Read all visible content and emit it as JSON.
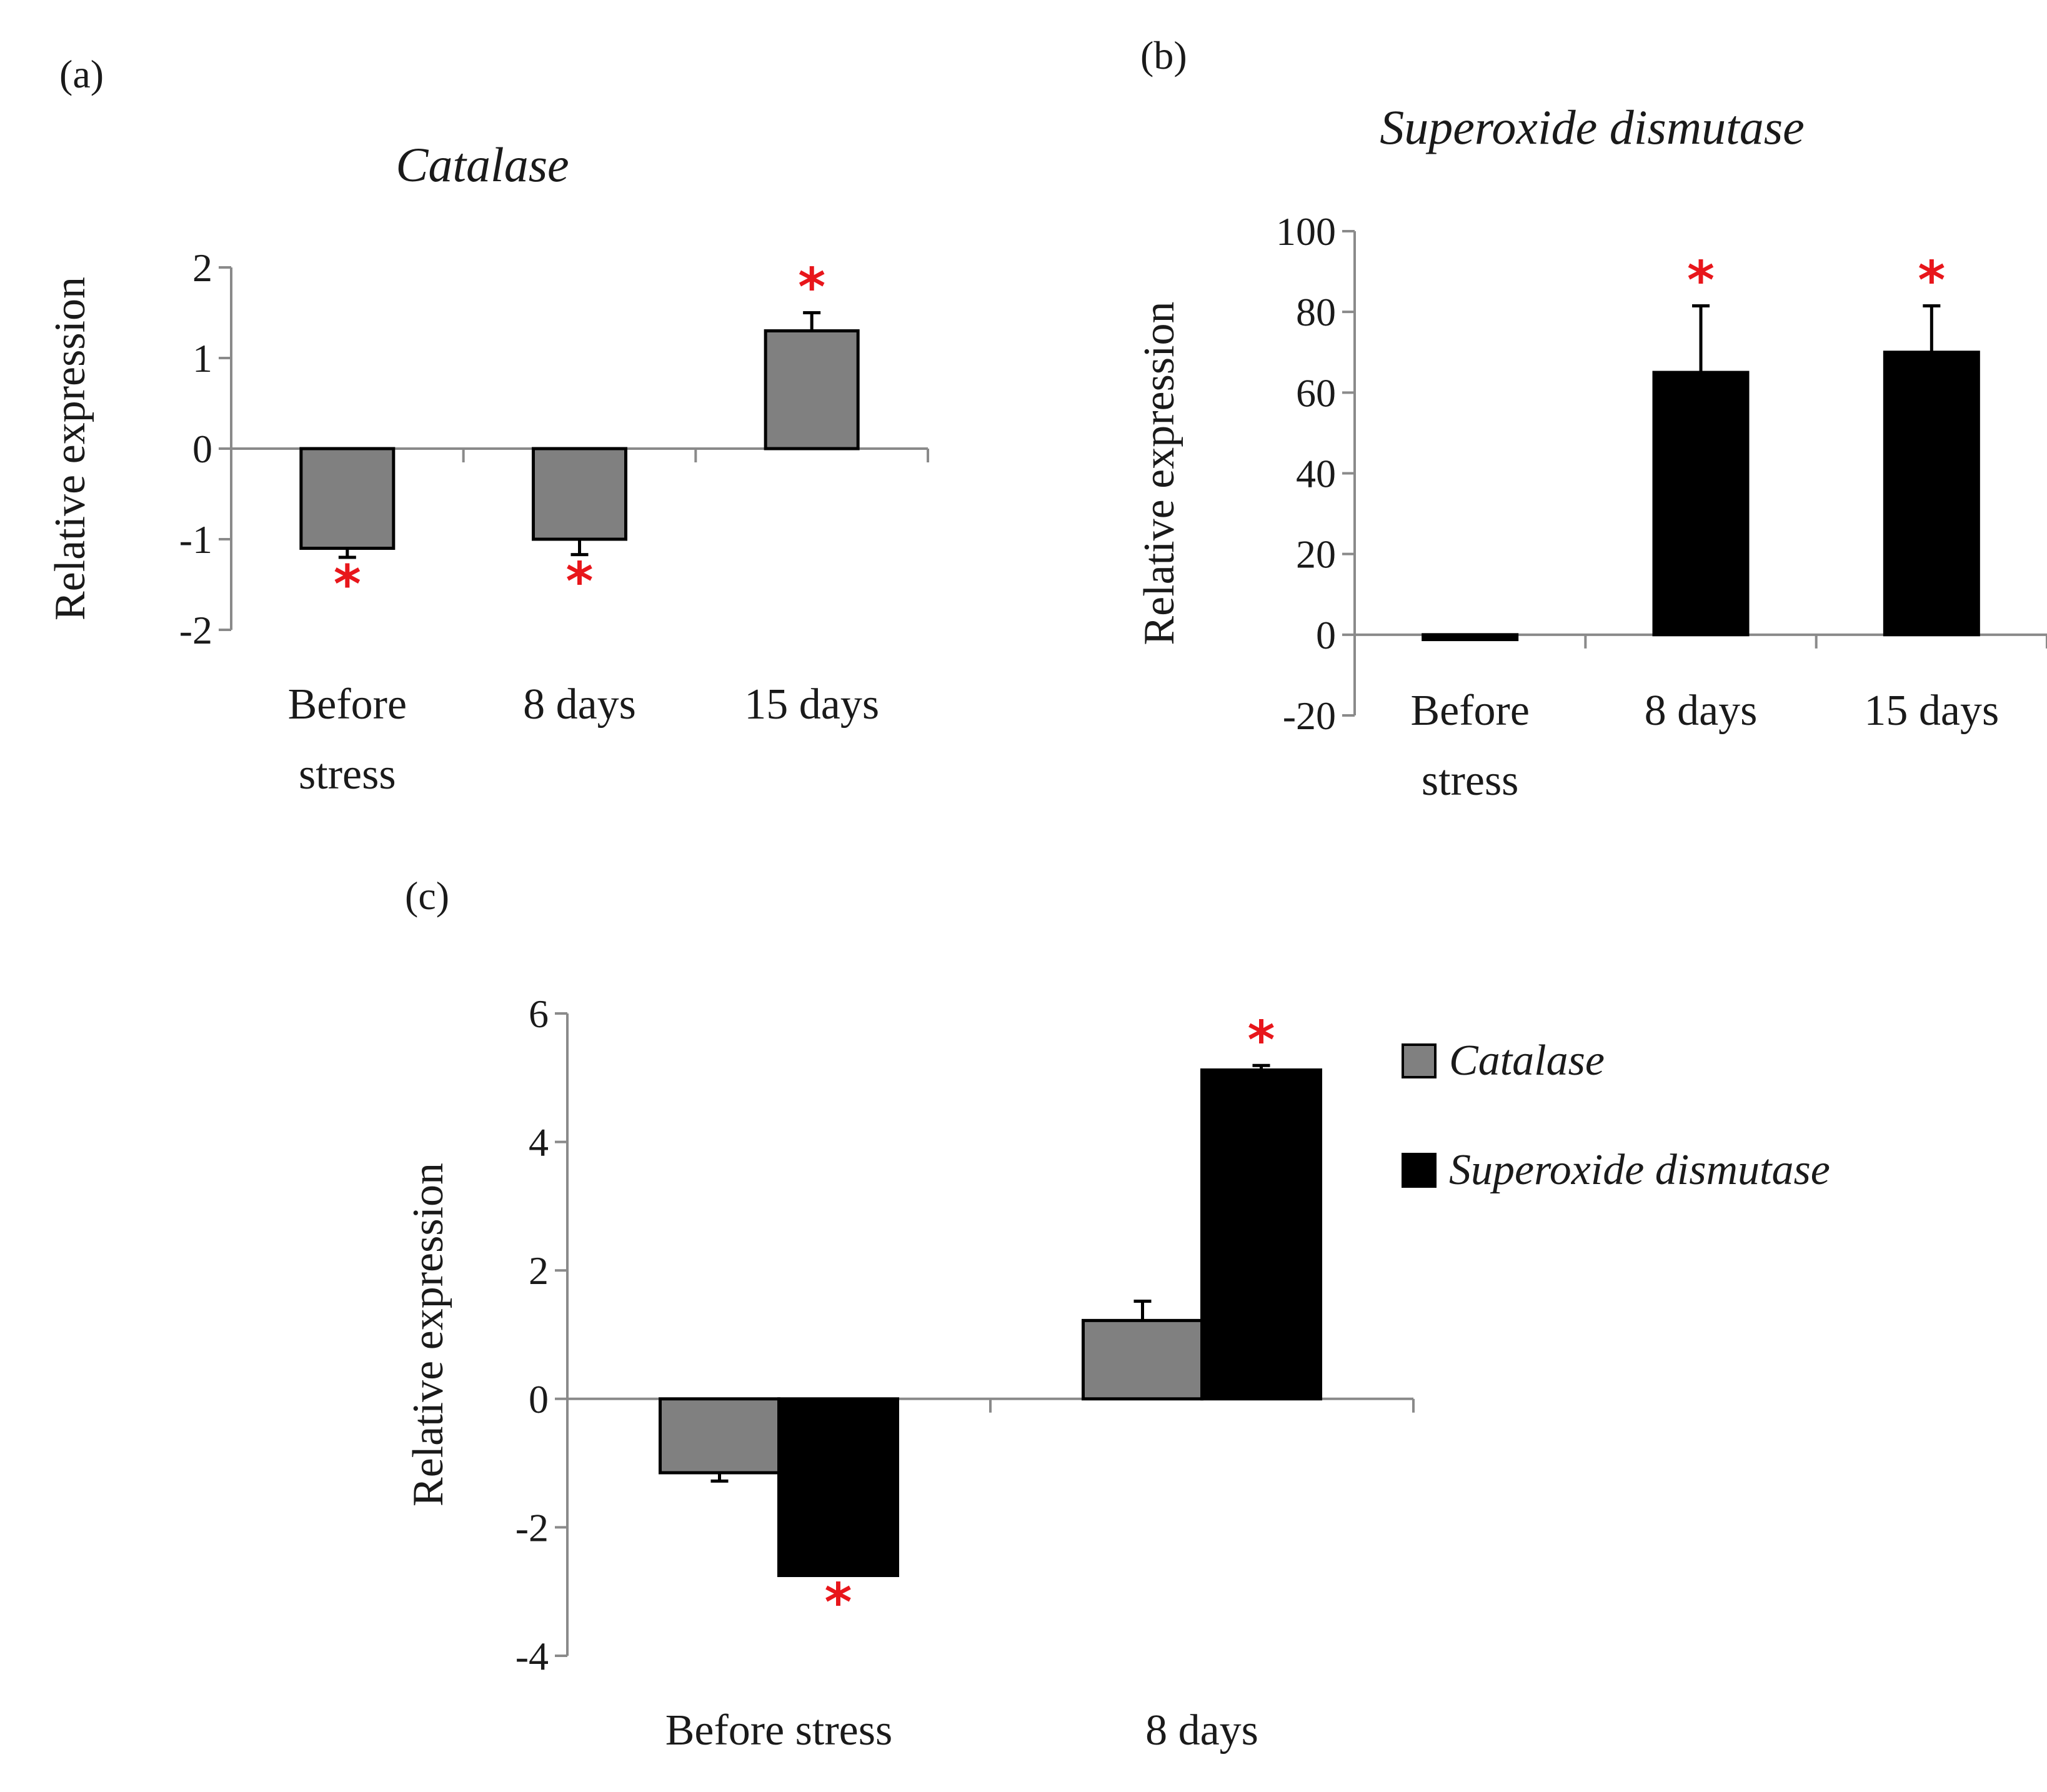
{
  "chart_data": [
    {
      "panel": "(a)",
      "type": "bar",
      "title": "Catalase",
      "ylabel": "Relative expression",
      "ylim": [
        -2,
        2
      ],
      "yticks": [
        -2,
        -1,
        0,
        1,
        2
      ],
      "categories": [
        "Before stress",
        "8 days",
        "15 days"
      ],
      "category_lines": [
        [
          "Before",
          "stress"
        ],
        [
          "8 days"
        ],
        [
          "15 days"
        ]
      ],
      "series": [
        {
          "name": "Catalase",
          "color": "#808080",
          "values": [
            -1.1,
            -1.0,
            1.3
          ],
          "errors": [
            0.1,
            0.17,
            0.2
          ],
          "significant": [
            true,
            true,
            true
          ]
        }
      ]
    },
    {
      "panel": "(b)",
      "type": "bar",
      "title": "Superoxide dismutase",
      "ylabel": "Relative expression",
      "ylim": [
        -20,
        100
      ],
      "yticks": [
        -20,
        0,
        20,
        40,
        60,
        80,
        100
      ],
      "categories": [
        "Before stress",
        "8 days",
        "15 days"
      ],
      "category_lines": [
        [
          "Before",
          "stress"
        ],
        [
          "8 days"
        ],
        [
          "15 days"
        ]
      ],
      "series": [
        {
          "name": "Superoxide dismutase",
          "color": "#000000",
          "values": [
            -1.2,
            65,
            70
          ],
          "errors": [
            0,
            16.5,
            11.5
          ],
          "significant": [
            false,
            true,
            true
          ]
        }
      ]
    },
    {
      "panel": "(c)",
      "type": "bar",
      "title": "",
      "ylabel": "Relative expression",
      "ylim": [
        -4,
        6
      ],
      "yticks": [
        -4,
        -2,
        0,
        2,
        4,
        6
      ],
      "categories": [
        "Before stress",
        "8 days"
      ],
      "category_lines": [
        [
          "Before stress"
        ],
        [
          "8 days"
        ]
      ],
      "legend_position": "right",
      "series": [
        {
          "name": "Catalase",
          "color": "#808080",
          "values": [
            -1.15,
            1.22
          ],
          "errors": [
            0.13,
            0.3
          ],
          "significant": [
            false,
            false
          ]
        },
        {
          "name": "Superoxide dismutase",
          "color": "#000000",
          "values": [
            -2.75,
            5.12
          ],
          "errors": [
            0,
            0.07
          ],
          "significant": [
            true,
            true
          ]
        }
      ]
    }
  ],
  "significance_marker": "*"
}
